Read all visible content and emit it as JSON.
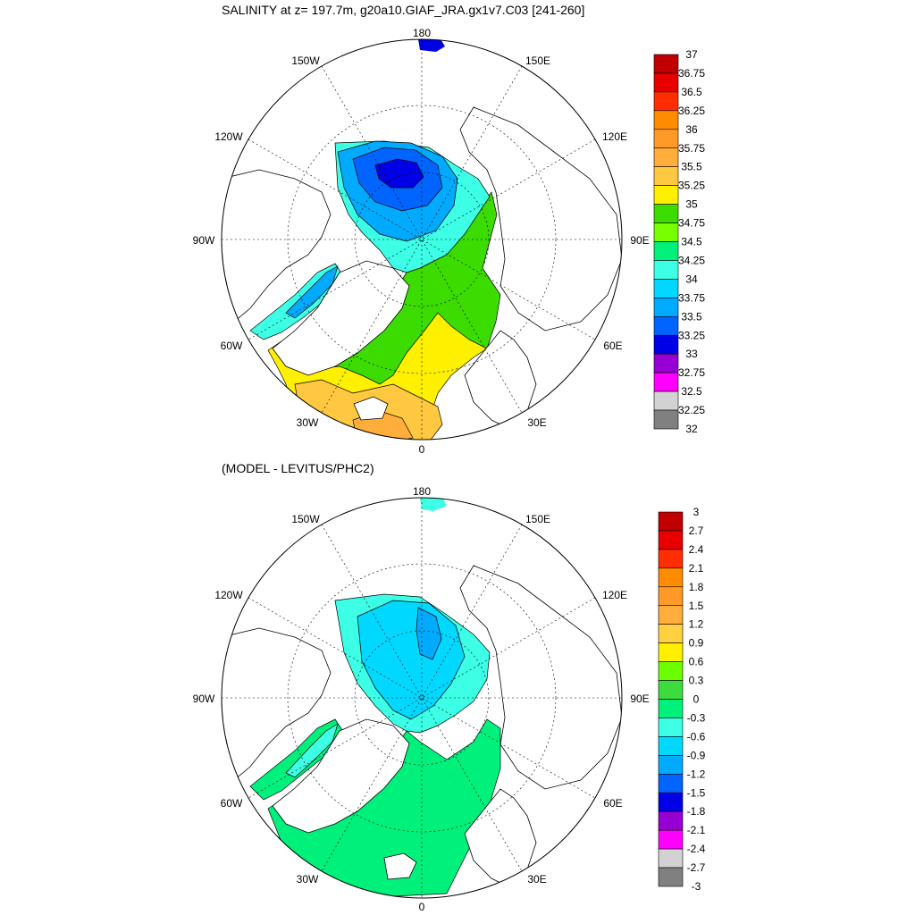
{
  "panels": [
    {
      "title": "SALINITY at z= 197.7m, g20a10.GIAF_JRA.gx1v7.C03 [241-260]",
      "colorbar": {
        "labels": [
          "37",
          "36.75",
          "36.5",
          "36.25",
          "36",
          "35.75",
          "35.5",
          "35.25",
          "35",
          "34.75",
          "34.5",
          "34.25",
          "34",
          "33.75",
          "33.5",
          "33.25",
          "33",
          "32.75",
          "32.5",
          "32.25",
          "32"
        ],
        "colors": [
          "#c00000",
          "#e80000",
          "#ff2d00",
          "#ff8c00",
          "#ff9a28",
          "#ffae3c",
          "#ffc840",
          "#fff000",
          "#3cdc00",
          "#78ff00",
          "#00f07c",
          "#3cffe6",
          "#00d8ff",
          "#00aaff",
          "#0064ff",
          "#0000e6",
          "#9600d2",
          "#ff00ff",
          "#d2d2d2",
          "#808080"
        ]
      }
    },
    {
      "title": "(MODEL - LEVITUS/PHC2)",
      "colorbar": {
        "labels": [
          "3",
          "2.7",
          "2.4",
          "2.1",
          "1.8",
          "1.5",
          "1.2",
          "0.9",
          "0.6",
          "0.3",
          "0",
          "-0.3",
          "-0.6",
          "-0.9",
          "-1.2",
          "-1.5",
          "-1.8",
          "-2.1",
          "-2.4",
          "-2.7",
          "-3"
        ],
        "colors": [
          "#c00000",
          "#e80000",
          "#ff2d00",
          "#ff8c00",
          "#ff9a28",
          "#ffae3c",
          "#ffd040",
          "#fff000",
          "#6cff00",
          "#3cdc3c",
          "#00f07c",
          "#3cffe6",
          "#00d8ff",
          "#00aaff",
          "#0064ff",
          "#0000e6",
          "#9600d2",
          "#ff00ff",
          "#d2d2d2",
          "#808080"
        ]
      }
    }
  ],
  "longitude_labels": {
    "top": "180",
    "bottom": "0",
    "left_upper": "120W",
    "left_mid": "90W",
    "left_lower": "60W",
    "right_upper": "120E",
    "right_mid": "90E",
    "right_lower": "60E",
    "top_left": "150W",
    "top_right": "150E",
    "bottom_left": "30W",
    "bottom_right": "30E"
  }
}
